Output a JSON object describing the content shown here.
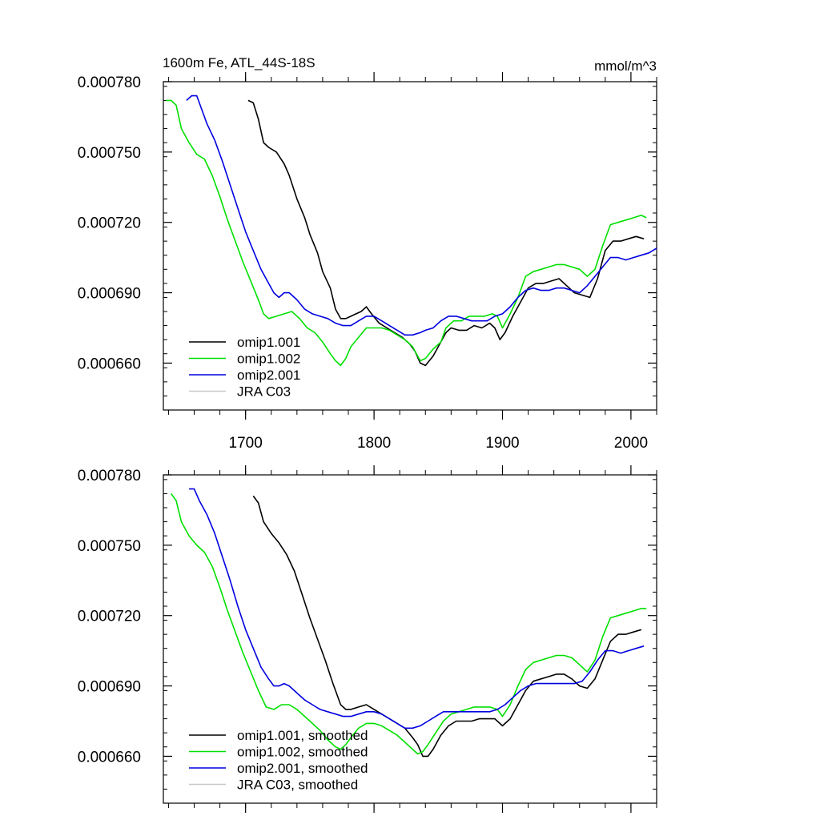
{
  "colors": {
    "omip1_001": "#000000",
    "omip1_002": "#00e000",
    "omip2_001": "#0000e0",
    "jra_c03": "#c8c8c8"
  },
  "chart_data": [
    {
      "type": "line",
      "title": "1600m Fe, ATL_44S-18S",
      "units": "mmol/m^3",
      "xlim": [
        1636,
        2020
      ],
      "ylim": [
        0.00064,
        0.00078
      ],
      "x_ticks": [
        1700,
        1800,
        1900,
        2000
      ],
      "x_tick_labels": [
        "1700",
        "1800",
        "1900",
        "2000"
      ],
      "y_ticks": [
        0.00066,
        0.00069,
        0.00072,
        0.00075,
        0.00078
      ],
      "y_tick_labels": [
        "0.000660",
        "0.000690",
        "0.000720",
        "0.000750",
        "0.000780"
      ],
      "legend_placement": "bottom-left",
      "series": [
        {
          "name": "omip1.001",
          "color_key": "omip1_001",
          "x": [
            1702,
            1706,
            1710,
            1714,
            1718,
            1724,
            1730,
            1734,
            1740,
            1746,
            1750,
            1756,
            1760,
            1766,
            1770,
            1774,
            1778,
            1782,
            1786,
            1790,
            1794,
            1798,
            1804,
            1810,
            1816,
            1822,
            1828,
            1832,
            1836,
            1840,
            1846,
            1850,
            1856,
            1860,
            1866,
            1872,
            1878,
            1884,
            1890,
            1894,
            1898,
            1902,
            1908,
            1914,
            1920,
            1926,
            1932,
            1938,
            1944,
            1950,
            1956,
            1962,
            1968,
            1974,
            1980,
            1986,
            1992,
            1998,
            2004,
            2010
          ],
          "y": [
            0.000772,
            0.000771,
            0.000764,
            0.000754,
            0.000752,
            0.00075,
            0.000745,
            0.00074,
            0.00073,
            0.000722,
            0.000715,
            0.000707,
            0.000699,
            0.000692,
            0.000683,
            0.000679,
            0.000679,
            0.00068,
            0.000681,
            0.000682,
            0.000684,
            0.000681,
            0.000677,
            0.000675,
            0.000673,
            0.000671,
            0.000668,
            0.000665,
            0.00066,
            0.000659,
            0.000663,
            0.000667,
            0.000673,
            0.000675,
            0.000674,
            0.000674,
            0.000676,
            0.000675,
            0.000677,
            0.000675,
            0.00067,
            0.000673,
            0.00068,
            0.000686,
            0.000692,
            0.000694,
            0.000694,
            0.000695,
            0.000696,
            0.000693,
            0.00069,
            0.000689,
            0.000688,
            0.000696,
            0.000708,
            0.000712,
            0.000712,
            0.000713,
            0.000714,
            0.000713
          ]
        },
        {
          "name": "omip1.002",
          "color_key": "omip1_002",
          "x": [
            1638,
            1642,
            1646,
            1650,
            1656,
            1662,
            1668,
            1674,
            1680,
            1686,
            1692,
            1698,
            1704,
            1710,
            1714,
            1718,
            1724,
            1730,
            1736,
            1742,
            1748,
            1754,
            1760,
            1766,
            1770,
            1774,
            1778,
            1782,
            1788,
            1794,
            1800,
            1806,
            1812,
            1818,
            1824,
            1830,
            1836,
            1840,
            1846,
            1852,
            1856,
            1862,
            1868,
            1874,
            1880,
            1886,
            1892,
            1896,
            1900,
            1906,
            1912,
            1918,
            1924,
            1930,
            1936,
            1942,
            1948,
            1954,
            1960,
            1966,
            1972,
            1978,
            1984,
            1990,
            1996,
            2002,
            2008,
            2012
          ],
          "y": [
            0.000772,
            0.000772,
            0.00077,
            0.00076,
            0.000754,
            0.000749,
            0.000747,
            0.00074,
            0.000731,
            0.000721,
            0.000712,
            0.000703,
            0.000695,
            0.000687,
            0.000681,
            0.000679,
            0.00068,
            0.000681,
            0.000682,
            0.000679,
            0.000675,
            0.000673,
            0.000669,
            0.000664,
            0.000661,
            0.000659,
            0.000662,
            0.000667,
            0.000671,
            0.000675,
            0.000675,
            0.000675,
            0.000674,
            0.000672,
            0.00067,
            0.000667,
            0.000661,
            0.000662,
            0.000666,
            0.000669,
            0.000675,
            0.000678,
            0.000678,
            0.00068,
            0.00068,
            0.00068,
            0.000681,
            0.00068,
            0.000675,
            0.000681,
            0.000688,
            0.000697,
            0.000699,
            0.0007,
            0.000701,
            0.000702,
            0.000702,
            0.000701,
            0.0007,
            0.000697,
            0.0007,
            0.00071,
            0.000719,
            0.00072,
            0.000721,
            0.000722,
            0.000723,
            0.000722
          ]
        },
        {
          "name": "omip2.001",
          "color_key": "omip2_001",
          "x": [
            1654,
            1658,
            1662,
            1666,
            1670,
            1676,
            1682,
            1688,
            1694,
            1700,
            1706,
            1712,
            1718,
            1722,
            1726,
            1730,
            1734,
            1740,
            1746,
            1752,
            1758,
            1764,
            1770,
            1776,
            1782,
            1788,
            1794,
            1800,
            1806,
            1812,
            1818,
            1824,
            1830,
            1836,
            1840,
            1846,
            1852,
            1858,
            1864,
            1870,
            1876,
            1882,
            1888,
            1894,
            1900,
            1906,
            1912,
            1918,
            1924,
            1930,
            1936,
            1942,
            1948,
            1954,
            1960,
            1966,
            1972,
            1978,
            1984,
            1990,
            1996,
            2002,
            2008,
            2014,
            2020
          ],
          "y": [
            0.000772,
            0.000774,
            0.000774,
            0.000768,
            0.000762,
            0.000755,
            0.000746,
            0.000736,
            0.000726,
            0.000716,
            0.000708,
            0.0007,
            0.000694,
            0.00069,
            0.000688,
            0.00069,
            0.00069,
            0.000687,
            0.000683,
            0.000681,
            0.00068,
            0.000679,
            0.000677,
            0.000676,
            0.000676,
            0.000678,
            0.00068,
            0.00068,
            0.000678,
            0.000676,
            0.000674,
            0.000672,
            0.000672,
            0.000673,
            0.000674,
            0.000675,
            0.000678,
            0.00068,
            0.00068,
            0.000679,
            0.000678,
            0.000678,
            0.000678,
            0.00068,
            0.000681,
            0.000684,
            0.000688,
            0.000691,
            0.000692,
            0.000691,
            0.000691,
            0.000692,
            0.000692,
            0.000691,
            0.00069,
            0.000693,
            0.000697,
            0.000701,
            0.000705,
            0.000705,
            0.000704,
            0.000705,
            0.000706,
            0.000707,
            0.000709
          ]
        },
        {
          "name": "JRA C03",
          "color_key": "jra_c03",
          "x": [],
          "y": []
        }
      ]
    },
    {
      "type": "line",
      "title": "",
      "units": "",
      "xlim": [
        1636,
        2020
      ],
      "ylim": [
        0.00064,
        0.00078
      ],
      "x_ticks": [
        1700,
        1800,
        1900,
        2000
      ],
      "x_tick_labels": [],
      "y_ticks": [
        0.00066,
        0.00069,
        0.00072,
        0.00075,
        0.00078
      ],
      "y_tick_labels": [
        "0.000660",
        "0.000690",
        "0.000720",
        "0.000750",
        "0.000780"
      ],
      "legend_placement": "bottom-left",
      "series": [
        {
          "name": "omip1.001, smoothed",
          "color_key": "omip1_001",
          "x": [
            1706,
            1710,
            1714,
            1720,
            1726,
            1732,
            1738,
            1744,
            1750,
            1756,
            1762,
            1768,
            1774,
            1778,
            1782,
            1788,
            1794,
            1800,
            1806,
            1812,
            1818,
            1824,
            1830,
            1834,
            1838,
            1842,
            1846,
            1852,
            1858,
            1864,
            1870,
            1876,
            1882,
            1888,
            1894,
            1900,
            1906,
            1912,
            1918,
            1924,
            1930,
            1936,
            1942,
            1948,
            1954,
            1960,
            1966,
            1972,
            1978,
            1984,
            1990,
            1996,
            2002,
            2008
          ],
          "y": [
            0.000771,
            0.000768,
            0.00076,
            0.000755,
            0.000751,
            0.000746,
            0.000739,
            0.000729,
            0.000719,
            0.00071,
            0.000701,
            0.000691,
            0.000682,
            0.00068,
            0.00068,
            0.000681,
            0.000682,
            0.00068,
            0.000678,
            0.000676,
            0.000674,
            0.000672,
            0.000668,
            0.000665,
            0.00066,
            0.00066,
            0.000663,
            0.000669,
            0.000673,
            0.000675,
            0.000675,
            0.000675,
            0.000676,
            0.000676,
            0.000676,
            0.000673,
            0.000676,
            0.000682,
            0.000688,
            0.000692,
            0.000693,
            0.000694,
            0.000695,
            0.000695,
            0.000693,
            0.00069,
            0.000689,
            0.000693,
            0.000701,
            0.000709,
            0.000712,
            0.000712,
            0.000713,
            0.000714
          ]
        },
        {
          "name": "omip1.002, smoothed",
          "color_key": "omip1_002",
          "x": [
            1642,
            1646,
            1650,
            1656,
            1662,
            1668,
            1674,
            1680,
            1686,
            1692,
            1698,
            1704,
            1710,
            1716,
            1722,
            1728,
            1734,
            1740,
            1746,
            1752,
            1758,
            1764,
            1770,
            1774,
            1778,
            1782,
            1788,
            1794,
            1800,
            1806,
            1812,
            1818,
            1824,
            1830,
            1834,
            1838,
            1842,
            1848,
            1854,
            1860,
            1866,
            1872,
            1878,
            1884,
            1890,
            1896,
            1900,
            1906,
            1912,
            1918,
            1924,
            1930,
            1936,
            1942,
            1948,
            1954,
            1960,
            1966,
            1972,
            1978,
            1984,
            1990,
            1996,
            2002,
            2008,
            2012
          ],
          "y": [
            0.000772,
            0.000769,
            0.00076,
            0.000754,
            0.00075,
            0.000747,
            0.000741,
            0.000732,
            0.000722,
            0.000713,
            0.000704,
            0.000696,
            0.000688,
            0.000681,
            0.00068,
            0.000682,
            0.000682,
            0.00068,
            0.000677,
            0.000674,
            0.000671,
            0.000667,
            0.000664,
            0.000663,
            0.000665,
            0.000668,
            0.000672,
            0.000674,
            0.000674,
            0.000673,
            0.000671,
            0.000669,
            0.000666,
            0.000663,
            0.000661,
            0.000662,
            0.000665,
            0.00067,
            0.000675,
            0.000678,
            0.000679,
            0.00068,
            0.000681,
            0.000681,
            0.000681,
            0.00068,
            0.000677,
            0.000682,
            0.00069,
            0.000697,
            0.0007,
            0.000701,
            0.000702,
            0.000703,
            0.000703,
            0.000702,
            0.000699,
            0.000696,
            0.000701,
            0.000711,
            0.000719,
            0.00072,
            0.000721,
            0.000722,
            0.000723,
            0.000723
          ]
        },
        {
          "name": "omip2.001, smoothed",
          "color_key": "omip2_001",
          "x": [
            1656,
            1660,
            1664,
            1670,
            1676,
            1682,
            1688,
            1694,
            1700,
            1706,
            1712,
            1718,
            1722,
            1726,
            1730,
            1734,
            1740,
            1746,
            1752,
            1758,
            1764,
            1770,
            1776,
            1782,
            1788,
            1794,
            1800,
            1806,
            1812,
            1818,
            1824,
            1830,
            1836,
            1842,
            1848,
            1854,
            1860,
            1866,
            1872,
            1878,
            1884,
            1890,
            1896,
            1902,
            1908,
            1914,
            1920,
            1926,
            1932,
            1938,
            1944,
            1950,
            1956,
            1962,
            1968,
            1974,
            1980,
            1986,
            1992,
            1998,
            2004,
            2010
          ],
          "y": [
            0.000774,
            0.000774,
            0.000769,
            0.000763,
            0.000755,
            0.000745,
            0.000735,
            0.000724,
            0.000714,
            0.000706,
            0.000698,
            0.000693,
            0.00069,
            0.00069,
            0.000691,
            0.00069,
            0.000687,
            0.000684,
            0.000682,
            0.00068,
            0.000679,
            0.000678,
            0.000677,
            0.000677,
            0.000678,
            0.000679,
            0.000679,
            0.000678,
            0.000676,
            0.000674,
            0.000672,
            0.000672,
            0.000673,
            0.000675,
            0.000677,
            0.000679,
            0.000679,
            0.000679,
            0.000679,
            0.000679,
            0.000679,
            0.000679,
            0.00068,
            0.000682,
            0.000685,
            0.000688,
            0.00069,
            0.000691,
            0.000691,
            0.000691,
            0.000691,
            0.000691,
            0.000691,
            0.000692,
            0.000696,
            0.000701,
            0.000705,
            0.000705,
            0.000704,
            0.000705,
            0.000706,
            0.000707
          ]
        },
        {
          "name": "JRA C03, smoothed",
          "color_key": "jra_c03",
          "x": [],
          "y": []
        }
      ]
    }
  ]
}
